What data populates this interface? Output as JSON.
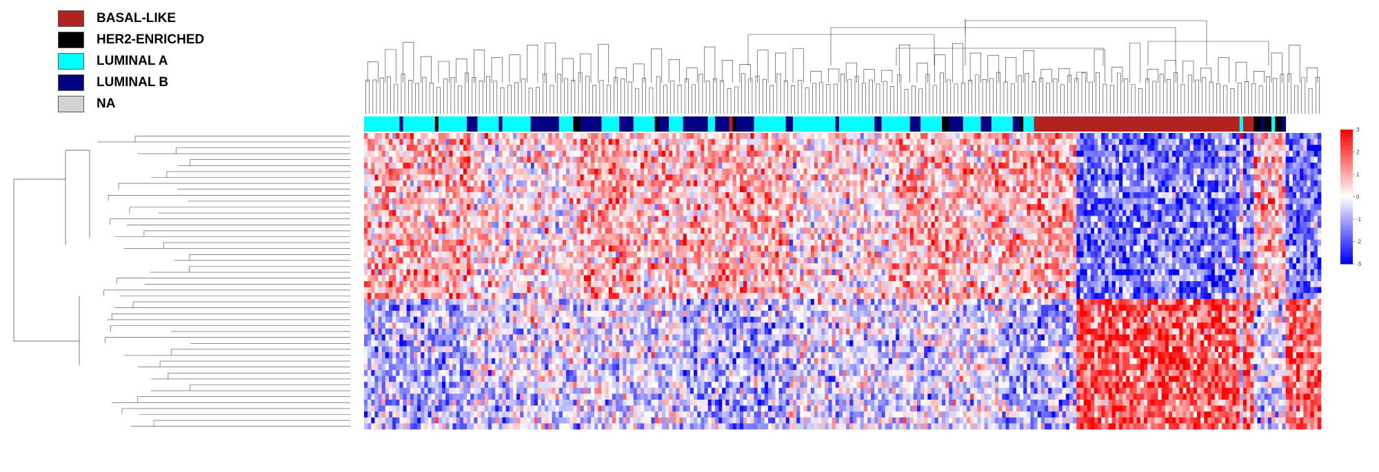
{
  "chart_data": {
    "type": "heatmap",
    "title": "",
    "xlabel": "",
    "ylabel": "",
    "legend": {
      "position": "top-left",
      "entries": [
        {
          "label": "BASAL-LIKE",
          "color": "#b22222"
        },
        {
          "label": "HER2-ENRICHED",
          "color": "#000000"
        },
        {
          "label": "LUMINAL A",
          "color": "#00ffff"
        },
        {
          "label": "LUMINAL B",
          "color": "#000080"
        },
        {
          "label": "NA",
          "color": "#d3d3d3"
        }
      ]
    },
    "color_scale": {
      "min": -3,
      "max": 3,
      "ticks": [
        "3",
        "2",
        "1",
        "0",
        "-1",
        "-2",
        "-3"
      ],
      "low_color": "#0000ff",
      "mid_color": "#ffffff",
      "high_color": "#ff0000"
    },
    "n_samples": 270,
    "n_genes": 50,
    "subtype_segments": [
      {
        "subtype": "LUMINAL A",
        "count": 10
      },
      {
        "subtype": "LUMINAL B",
        "count": 1
      },
      {
        "subtype": "LUMINAL A",
        "count": 9
      },
      {
        "subtype": "HER2-ENRICHED",
        "count": 1
      },
      {
        "subtype": "LUMINAL A",
        "count": 8
      },
      {
        "subtype": "LUMINAL B",
        "count": 3
      },
      {
        "subtype": "LUMINAL A",
        "count": 6
      },
      {
        "subtype": "LUMINAL B",
        "count": 1
      },
      {
        "subtype": "LUMINAL A",
        "count": 8
      },
      {
        "subtype": "LUMINAL B",
        "count": 8
      },
      {
        "subtype": "LUMINAL A",
        "count": 4
      },
      {
        "subtype": "HER2-ENRICHED",
        "count": 2
      },
      {
        "subtype": "LUMINAL B",
        "count": 6
      },
      {
        "subtype": "LUMINAL A",
        "count": 5
      },
      {
        "subtype": "LUMINAL B",
        "count": 4
      },
      {
        "subtype": "LUMINAL A",
        "count": 6
      },
      {
        "subtype": "HER2-ENRICHED",
        "count": 1
      },
      {
        "subtype": "LUMINAL B",
        "count": 3
      },
      {
        "subtype": "LUMINAL A",
        "count": 4
      },
      {
        "subtype": "LUMINAL B",
        "count": 7
      },
      {
        "subtype": "LUMINAL A",
        "count": 2
      },
      {
        "subtype": "LUMINAL B",
        "count": 4
      },
      {
        "subtype": "BASAL-LIKE",
        "count": 1
      },
      {
        "subtype": "HER2-ENRICHED",
        "count": 1
      },
      {
        "subtype": "LUMINAL B",
        "count": 5
      },
      {
        "subtype": "LUMINAL A",
        "count": 9
      },
      {
        "subtype": "LUMINAL B",
        "count": 2
      },
      {
        "subtype": "LUMINAL A",
        "count": 12
      },
      {
        "subtype": "LUMINAL B",
        "count": 1
      },
      {
        "subtype": "LUMINAL A",
        "count": 10
      },
      {
        "subtype": "LUMINAL B",
        "count": 2
      },
      {
        "subtype": "LUMINAL A",
        "count": 8
      },
      {
        "subtype": "LUMINAL B",
        "count": 3
      },
      {
        "subtype": "LUMINAL A",
        "count": 6
      },
      {
        "subtype": "HER2-ENRICHED",
        "count": 2
      },
      {
        "subtype": "LUMINAL B",
        "count": 4
      },
      {
        "subtype": "LUMINAL A",
        "count": 5
      },
      {
        "subtype": "LUMINAL B",
        "count": 3
      },
      {
        "subtype": "LUMINAL A",
        "count": 6
      },
      {
        "subtype": "LUMINAL B",
        "count": 2
      },
      {
        "subtype": "HER2-ENRICHED",
        "count": 1
      },
      {
        "subtype": "LUMINAL A",
        "count": 3
      },
      {
        "subtype": "BASAL-LIKE",
        "count": 58
      },
      {
        "subtype": "LUMINAL A",
        "count": 1
      },
      {
        "subtype": "BASAL-LIKE",
        "count": 3
      },
      {
        "subtype": "HER2-ENRICHED",
        "count": 2
      },
      {
        "subtype": "LUMINAL B",
        "count": 1
      },
      {
        "subtype": "HER2-ENRICHED",
        "count": 2
      },
      {
        "subtype": "LUMINAL A",
        "count": 1
      },
      {
        "subtype": "HER2-ENRICHED",
        "count": 2
      },
      {
        "subtype": "LUMINAL B",
        "count": 1
      }
    ]
  }
}
